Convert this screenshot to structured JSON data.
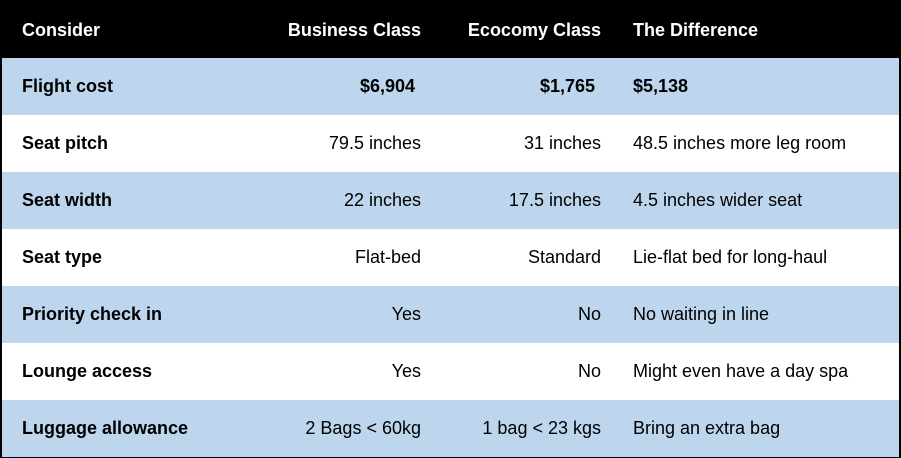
{
  "table": {
    "headers": [
      "Consider",
      "Business Class",
      "Ecocomy Class",
      "The Difference"
    ],
    "rows": [
      {
        "consider": "Flight cost",
        "business": "$6,904",
        "economy": "$1,765",
        "difference": "$5,138"
      },
      {
        "consider": "Seat pitch",
        "business": "79.5 inches",
        "economy": "31 inches",
        "difference": "48.5 inches more leg room"
      },
      {
        "consider": "Seat width",
        "business": "22 inches",
        "economy": "17.5 inches",
        "difference": "4.5 inches wider seat"
      },
      {
        "consider": "Seat type",
        "business": "Flat-bed",
        "economy": "Standard",
        "difference": "Lie-flat bed for long-haul"
      },
      {
        "consider": "Priority check in",
        "business": "Yes",
        "economy": "No",
        "difference": "No waiting in line"
      },
      {
        "consider": "Lounge access",
        "business": "Yes",
        "economy": "No",
        "difference": "Might even have a day spa"
      },
      {
        "consider": "Luggage allowance",
        "business": "2 Bags < 60kg",
        "economy": "1 bag < 23 kgs",
        "difference": "Bring an extra bag"
      }
    ]
  },
  "colors": {
    "header_bg": "#000000",
    "header_text": "#ffffff",
    "stripe_blue": "#bdd6ee",
    "stripe_white": "#ffffff"
  }
}
